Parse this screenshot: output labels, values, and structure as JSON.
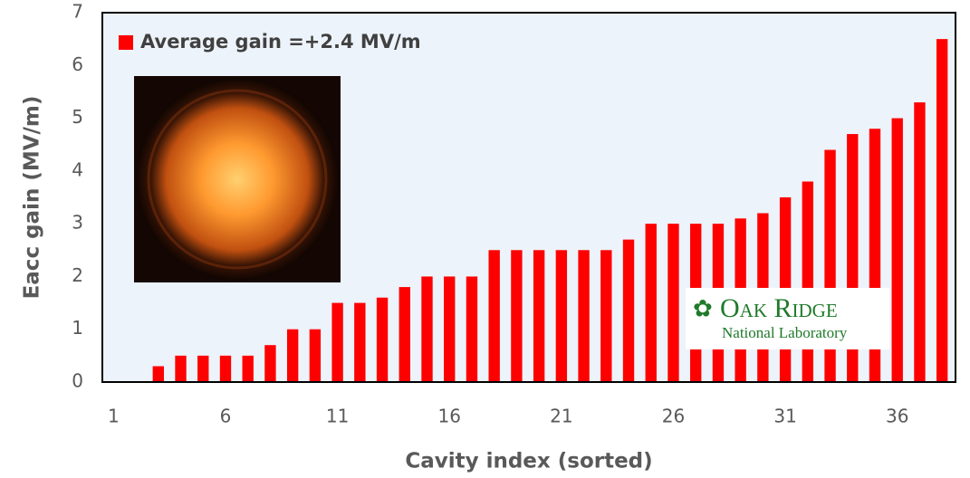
{
  "chart_data": {
    "type": "bar",
    "x": [
      1,
      2,
      3,
      4,
      5,
      6,
      7,
      8,
      9,
      10,
      11,
      12,
      13,
      14,
      15,
      16,
      17,
      18,
      19,
      20,
      21,
      22,
      23,
      24,
      25,
      26,
      27,
      28,
      29,
      30,
      31,
      32,
      33,
      34,
      35,
      36,
      37,
      38
    ],
    "series": [
      {
        "name": "Average gain =+2.4 MV/m",
        "color": "#ff0000",
        "values": [
          0,
          0,
          0.3,
          0.5,
          0.5,
          0.5,
          0.5,
          0.7,
          1.0,
          1.0,
          1.5,
          1.5,
          1.6,
          1.8,
          2.0,
          2.0,
          2.0,
          2.5,
          2.5,
          2.5,
          2.5,
          2.5,
          2.5,
          2.7,
          3.0,
          3.0,
          3.0,
          3.0,
          3.1,
          3.2,
          3.5,
          3.8,
          4.4,
          4.7,
          4.8,
          5.0,
          5.3,
          6.5
        ]
      }
    ],
    "xlabel": "Cavity index (sorted)",
    "ylabel": "Eacc gain (MV/m)",
    "xlim": [
      0.5,
      38.6
    ],
    "xticks": [
      1,
      6,
      11,
      16,
      21,
      26,
      31,
      36
    ],
    "ylim": [
      0,
      7
    ],
    "yticks": [
      0,
      1,
      2,
      3,
      4,
      5,
      6,
      7
    ],
    "legend": "upper left"
  },
  "logo": {
    "name": "Oak Ridge",
    "subtitle": "National Laboratory"
  }
}
